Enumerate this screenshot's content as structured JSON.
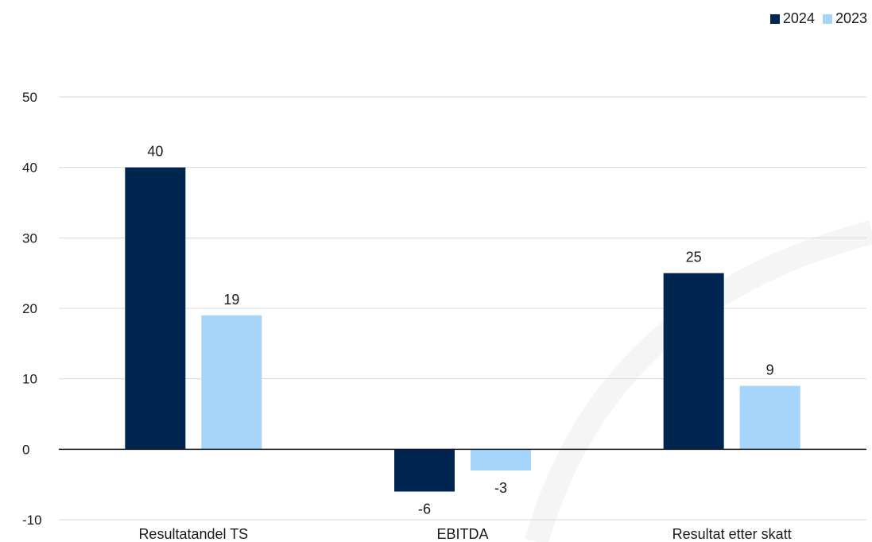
{
  "chart_data": {
    "type": "bar",
    "categories": [
      "Resultatandel TS",
      "EBITDA",
      "Resultat etter skatt"
    ],
    "series": [
      {
        "name": "2024",
        "values": [
          40,
          -6,
          25
        ],
        "color": "#002550",
        "labels": [
          "40",
          "-6",
          "25"
        ]
      },
      {
        "name": "2023",
        "values": [
          19,
          -3,
          9
        ],
        "color": "#A5D5FA",
        "labels": [
          "19",
          "-3",
          "9"
        ]
      }
    ],
    "ylim": [
      -10,
      50
    ],
    "yticks": [
      50,
      40,
      30,
      20,
      10,
      0,
      -10
    ],
    "ytick_labels": [
      "50",
      "40",
      "30",
      "20",
      "10",
      "0",
      "-10"
    ],
    "grid": true,
    "legend_position": "top-right",
    "title": "",
    "xlabel": "",
    "ylabel": ""
  }
}
